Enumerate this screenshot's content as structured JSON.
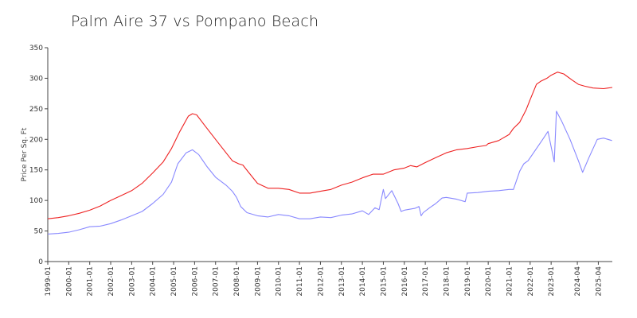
{
  "chart_data": {
    "type": "line",
    "title": "Palm Aire 37 vs Pompano Beach",
    "ylabel": "Price Per Sq. Ft",
    "ylim": [
      0,
      350
    ],
    "yticks": [
      0,
      50,
      100,
      150,
      200,
      250,
      300,
      350
    ],
    "xlim": [
      1999.0,
      2025.917
    ],
    "x_tick_labels": [
      "1999-01",
      "2000-01",
      "2001-01",
      "2002-01",
      "2003-01",
      "2004-01",
      "2005-01",
      "2006-01",
      "2007-01",
      "2008-01",
      "2009-01",
      "2010-01",
      "2011-01",
      "2012-01",
      "2013-01",
      "2014-01",
      "2015-01",
      "2016-01",
      "2017-01",
      "2018-01",
      "2019-01",
      "2020-01",
      "2021-01",
      "2022-01",
      "2023-01",
      "2024-04",
      "2025-04"
    ],
    "x_tick_values": [
      1999.0,
      2000.0,
      2001.0,
      2002.0,
      2003.0,
      2004.0,
      2005.0,
      2006.0,
      2007.0,
      2008.0,
      2009.0,
      2010.0,
      2011.0,
      2012.0,
      2013.0,
      2014.0,
      2015.0,
      2016.0,
      2017.0,
      2018.0,
      2019.0,
      2020.0,
      2021.0,
      2022.0,
      2023.0,
      2024.25,
      2025.25
    ],
    "series": [
      {
        "name": "Palm Aire 37",
        "color": "#8888ff",
        "points": [
          [
            1999.0,
            45
          ],
          [
            1999.5,
            46
          ],
          [
            2000.0,
            48
          ],
          [
            2000.5,
            52
          ],
          [
            2001.0,
            57
          ],
          [
            2001.5,
            58
          ],
          [
            2002.0,
            62
          ],
          [
            2002.5,
            68
          ],
          [
            2003.0,
            75
          ],
          [
            2003.5,
            82
          ],
          [
            2004.0,
            95
          ],
          [
            2004.5,
            110
          ],
          [
            2004.9,
            130
          ],
          [
            2005.2,
            160
          ],
          [
            2005.6,
            178
          ],
          [
            2005.9,
            183
          ],
          [
            2006.2,
            175
          ],
          [
            2006.6,
            155
          ],
          [
            2007.0,
            138
          ],
          [
            2007.5,
            125
          ],
          [
            2007.8,
            115
          ],
          [
            2008.0,
            105
          ],
          [
            2008.2,
            90
          ],
          [
            2008.5,
            80
          ],
          [
            2009.0,
            75
          ],
          [
            2009.5,
            73
          ],
          [
            2010.0,
            77
          ],
          [
            2010.5,
            75
          ],
          [
            2011.0,
            70
          ],
          [
            2011.5,
            70
          ],
          [
            2012.0,
            73
          ],
          [
            2012.5,
            72
          ],
          [
            2013.0,
            76
          ],
          [
            2013.5,
            78
          ],
          [
            2014.0,
            83
          ],
          [
            2014.3,
            77
          ],
          [
            2014.6,
            88
          ],
          [
            2014.8,
            85
          ],
          [
            2015.0,
            118
          ],
          [
            2015.1,
            103
          ],
          [
            2015.4,
            116
          ],
          [
            2015.7,
            95
          ],
          [
            2015.85,
            82
          ],
          [
            2016.0,
            84
          ],
          [
            2016.5,
            87
          ],
          [
            2016.7,
            90
          ],
          [
            2016.8,
            75
          ],
          [
            2016.9,
            80
          ],
          [
            2017.2,
            88
          ],
          [
            2017.5,
            95
          ],
          [
            2017.8,
            104
          ],
          [
            2018.0,
            105
          ],
          [
            2018.5,
            102
          ],
          [
            2018.9,
            98
          ],
          [
            2019.0,
            112
          ],
          [
            2019.5,
            113
          ],
          [
            2020.0,
            115
          ],
          [
            2020.5,
            116
          ],
          [
            2021.0,
            118
          ],
          [
            2021.2,
            118
          ],
          [
            2021.5,
            148
          ],
          [
            2021.7,
            160
          ],
          [
            2021.9,
            165
          ],
          [
            2022.2,
            180
          ],
          [
            2022.6,
            200
          ],
          [
            2022.85,
            213
          ],
          [
            2023.15,
            163
          ],
          [
            2023.25,
            246
          ],
          [
            2023.5,
            230
          ],
          [
            2023.9,
            200
          ],
          [
            2024.3,
            165
          ],
          [
            2024.5,
            146
          ],
          [
            2024.8,
            170
          ],
          [
            2025.2,
            200
          ],
          [
            2025.5,
            202
          ],
          [
            2025.9,
            198
          ]
        ]
      },
      {
        "name": "Pompano Beach",
        "color": "#ee2222",
        "points": [
          [
            1999.0,
            70
          ],
          [
            1999.5,
            72
          ],
          [
            2000.0,
            75
          ],
          [
            2000.5,
            79
          ],
          [
            2001.0,
            84
          ],
          [
            2001.5,
            91
          ],
          [
            2002.0,
            100
          ],
          [
            2002.5,
            108
          ],
          [
            2003.0,
            116
          ],
          [
            2003.5,
            128
          ],
          [
            2004.0,
            145
          ],
          [
            2004.5,
            163
          ],
          [
            2004.9,
            185
          ],
          [
            2005.3,
            213
          ],
          [
            2005.7,
            238
          ],
          [
            2005.9,
            242
          ],
          [
            2006.1,
            240
          ],
          [
            2006.5,
            222
          ],
          [
            2007.0,
            200
          ],
          [
            2007.5,
            178
          ],
          [
            2007.8,
            165
          ],
          [
            2008.1,
            160
          ],
          [
            2008.3,
            158
          ],
          [
            2008.6,
            145
          ],
          [
            2009.0,
            128
          ],
          [
            2009.5,
            120
          ],
          [
            2010.0,
            120
          ],
          [
            2010.5,
            118
          ],
          [
            2011.0,
            112
          ],
          [
            2011.5,
            112
          ],
          [
            2012.0,
            115
          ],
          [
            2012.5,
            118
          ],
          [
            2013.0,
            125
          ],
          [
            2013.5,
            130
          ],
          [
            2014.0,
            137
          ],
          [
            2014.5,
            143
          ],
          [
            2015.0,
            143
          ],
          [
            2015.5,
            150
          ],
          [
            2016.0,
            153
          ],
          [
            2016.3,
            157
          ],
          [
            2016.6,
            155
          ],
          [
            2017.0,
            162
          ],
          [
            2017.5,
            170
          ],
          [
            2018.0,
            178
          ],
          [
            2018.5,
            183
          ],
          [
            2019.0,
            185
          ],
          [
            2019.5,
            188
          ],
          [
            2019.9,
            190
          ],
          [
            2020.0,
            193
          ],
          [
            2020.5,
            198
          ],
          [
            2021.0,
            208
          ],
          [
            2021.2,
            218
          ],
          [
            2021.5,
            228
          ],
          [
            2021.8,
            248
          ],
          [
            2022.0,
            265
          ],
          [
            2022.3,
            290
          ],
          [
            2022.5,
            295
          ],
          [
            2022.8,
            300
          ],
          [
            2023.0,
            305
          ],
          [
            2023.3,
            310
          ],
          [
            2023.6,
            307
          ],
          [
            2024.0,
            297
          ],
          [
            2024.3,
            290
          ],
          [
            2024.6,
            287
          ],
          [
            2025.0,
            284
          ],
          [
            2025.5,
            283
          ],
          [
            2025.917,
            285
          ]
        ]
      }
    ]
  }
}
